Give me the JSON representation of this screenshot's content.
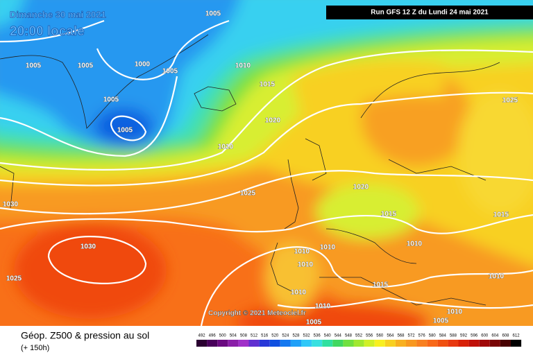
{
  "header": {
    "date": "Dimanche 30 mai 2021",
    "time": "20:00 locale",
    "run": "Run GFS 12 Z du Lundi 24 mai 2021"
  },
  "isobars": [
    "1005",
    "1005",
    "1005",
    "1000",
    "1005",
    "1010",
    "1015",
    "1005",
    "1005",
    "1020",
    "1010",
    "1025",
    "1020",
    "1025",
    "1030",
    "1015",
    "1030",
    "1010",
    "1010",
    "1010",
    "1015",
    "1010",
    "1025",
    "1010",
    "1010",
    "1015",
    "1010",
    "1010",
    "1005",
    "1005"
  ],
  "copyright": "Copyright © 2021 Meteociel.fr",
  "footer": {
    "title": "Géop. Z500 & pression au sol",
    "lead": "(+ 150h)"
  },
  "legend": [
    492,
    496,
    500,
    504,
    508,
    512,
    516,
    520,
    524,
    528,
    532,
    536,
    540,
    544,
    548,
    552,
    556,
    560,
    564,
    568,
    572,
    576,
    580,
    584,
    588,
    592,
    596,
    600,
    604,
    608,
    612
  ]
}
